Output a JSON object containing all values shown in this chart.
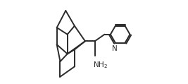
{
  "bg_color": "#ffffff",
  "line_color": "#2a2a2a",
  "line_width": 1.4,
  "figsize": [
    2.67,
    1.19
  ],
  "dpi": 100
}
